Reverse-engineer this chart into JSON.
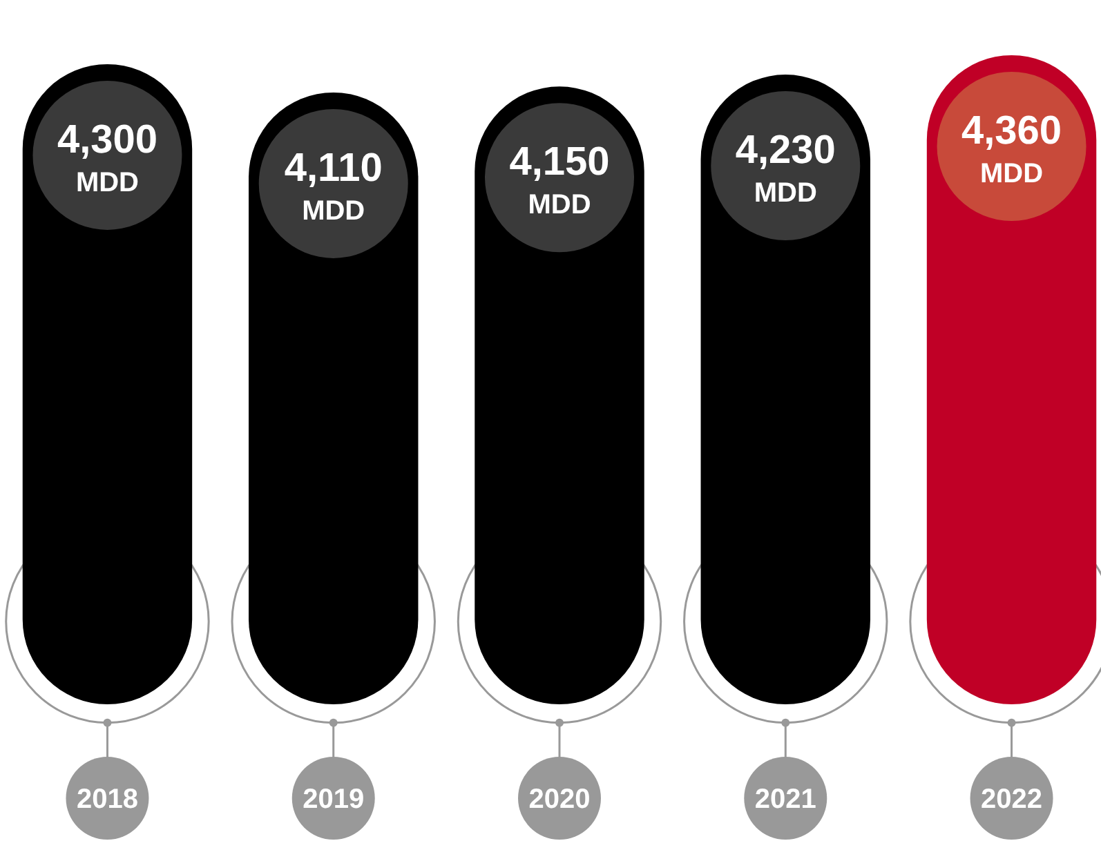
{
  "chart_data": {
    "type": "bar",
    "categories": [
      "2018",
      "2019",
      "2020",
      "2021",
      "2022"
    ],
    "values": [
      4300,
      4110,
      4150,
      4230,
      4360
    ],
    "value_labels": [
      "4,300 MDD",
      "4,110 MDD",
      "4,150 MDD",
      "4,230 MDD",
      "4,360 MDD"
    ],
    "colors": [
      "#000000",
      "#000000",
      "#000000",
      "#000000",
      "#c00026"
    ]
  }
}
